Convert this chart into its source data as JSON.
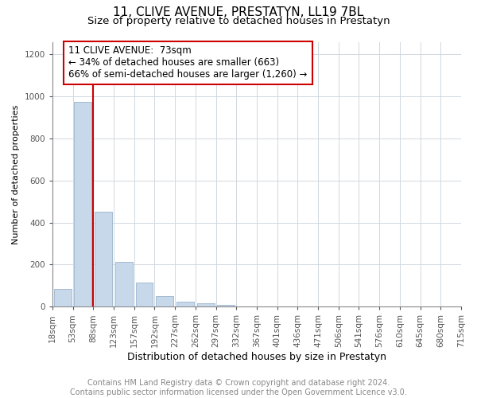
{
  "title": "11, CLIVE AVENUE, PRESTATYN, LL19 7BL",
  "subtitle": "Size of property relative to detached houses in Prestatyn",
  "xlabel": "Distribution of detached houses by size in Prestatyn",
  "ylabel": "Number of detached properties",
  "bar_values": [
    85,
    975,
    450,
    215,
    115,
    50,
    25,
    15,
    10,
    0,
    0,
    0,
    0,
    0,
    0,
    0,
    0,
    0,
    0,
    0
  ],
  "bar_labels": [
    "18sqm",
    "53sqm",
    "88sqm",
    "123sqm",
    "157sqm",
    "192sqm",
    "227sqm",
    "262sqm",
    "297sqm",
    "332sqm",
    "367sqm",
    "401sqm",
    "436sqm",
    "471sqm",
    "506sqm",
    "541sqm",
    "576sqm",
    "610sqm",
    "645sqm",
    "680sqm",
    "715sqm"
  ],
  "bar_color": "#c8d8eb",
  "bar_edge_color": "#9ab4cc",
  "ylim": [
    0,
    1260
  ],
  "yticks": [
    0,
    200,
    400,
    600,
    800,
    1000,
    1200
  ],
  "red_line_x": 1.5,
  "annotation_line1": "11 CLIVE AVENUE:  73sqm",
  "annotation_line2": "← 34% of detached houses are smaller (663)",
  "annotation_line3": "66% of semi-detached houses are larger (1,260) →",
  "annotation_box_color": "#ffffff",
  "annotation_box_edge": "#cc0000",
  "footer_line1": "Contains HM Land Registry data © Crown copyright and database right 2024.",
  "footer_line2": "Contains public sector information licensed under the Open Government Licence v3.0.",
  "red_line_color": "#cc0000",
  "grid_color": "#d0d8e0",
  "title_fontsize": 11,
  "subtitle_fontsize": 9.5,
  "ylabel_fontsize": 8,
  "xlabel_fontsize": 9,
  "tick_fontsize": 7.5,
  "annotation_fontsize": 8.5,
  "footer_fontsize": 7
}
